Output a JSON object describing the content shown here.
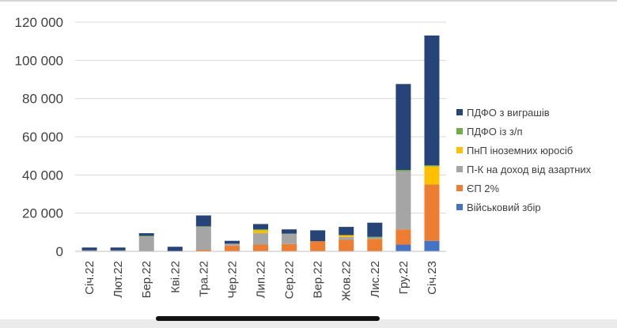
{
  "chart_data": {
    "type": "bar",
    "stacked": true,
    "categories": [
      "Січ.22",
      "Лют.22",
      "Бер.22",
      "Кві.22",
      "Тра.22",
      "Чер.22",
      "Лип.22",
      "Сер.22",
      "Вер.22",
      "Жов.22",
      "Лис.22",
      "Гру.22",
      "Січ.23"
    ],
    "series": [
      {
        "name": "Військовий збір",
        "color": "#4472c4",
        "values": [
          0,
          0,
          0,
          0,
          0,
          0,
          0,
          0,
          0,
          0,
          0,
          3500,
          5500
        ]
      },
      {
        "name": "ЄП 2%",
        "color": "#ed7d31",
        "values": [
          0,
          0,
          0,
          0,
          800,
          3000,
          3500,
          3800,
          5300,
          6000,
          6500,
          8000,
          29500
        ]
      },
      {
        "name": "П-К на доход від азартних",
        "color": "#a5a5a5",
        "values": [
          500,
          500,
          7800,
          0,
          12000,
          1000,
          6000,
          5500,
          0,
          1500,
          600,
          30500,
          0
        ]
      },
      {
        "name": "ПнП іноземних юросіб",
        "color": "#ffc000",
        "values": [
          0,
          0,
          0,
          0,
          0,
          0,
          1500,
          0,
          0,
          1000,
          0,
          0,
          9500
        ]
      },
      {
        "name": "ПДФО із з/п",
        "color": "#70ad47",
        "values": [
          0,
          0,
          300,
          0,
          300,
          0,
          500,
          0,
          0,
          0,
          500,
          600,
          500
        ]
      },
      {
        "name": "ПДФО з виграшів",
        "color": "#264478",
        "values": [
          1500,
          1500,
          1400,
          2400,
          5700,
          1500,
          2800,
          2200,
          5700,
          4300,
          7400,
          45000,
          68000
        ]
      }
    ],
    "legend_order": [
      "ПДФО з виграшів",
      "ПДФО із з/п",
      "ПнП іноземних юросіб",
      "П-К на доход від азартних",
      "ЄП 2%",
      "Військовий збір"
    ],
    "y_ticks": [
      "0",
      "20 000",
      "40 000",
      "60 000",
      "80 000",
      "100 000",
      "120 000"
    ],
    "ylim": [
      0,
      120000
    ],
    "grid": true,
    "legend_position": "right"
  }
}
